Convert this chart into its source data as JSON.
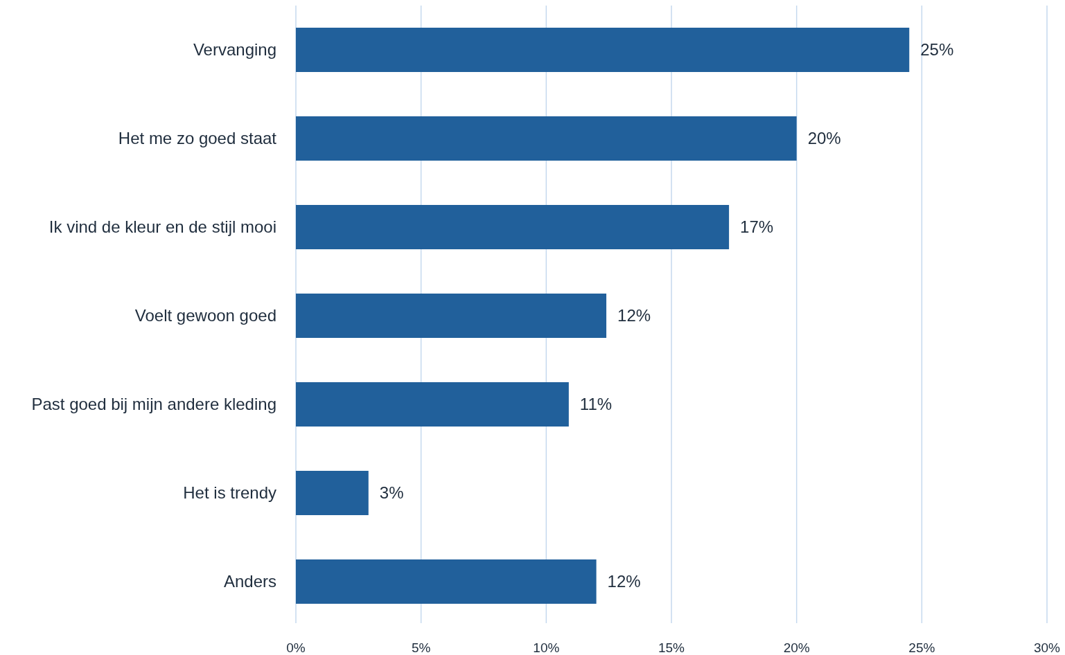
{
  "chart_data": {
    "type": "bar",
    "orientation": "horizontal",
    "categories": [
      "Vervanging",
      "Het me zo goed staat",
      "Ik vind de kleur en de stijl mooi",
      "Voelt gewoon goed",
      "Past goed bij mijn andere kleding",
      "Het is trendy",
      "Anders"
    ],
    "values": [
      24.5,
      20.0,
      17.3,
      12.4,
      10.9,
      2.9,
      12.0
    ],
    "value_labels": [
      "25%",
      "20%",
      "17%",
      "12%",
      "11%",
      "3%",
      "12%"
    ],
    "color": "#21609b",
    "xlim": [
      0,
      30
    ],
    "xticks": [
      {
        "value": 0,
        "label": "0%"
      },
      {
        "value": 5,
        "label": "5%"
      },
      {
        "value": 10,
        "label": "10%"
      },
      {
        "value": 15,
        "label": "15%"
      },
      {
        "value": 20,
        "label": "20%"
      },
      {
        "value": 25,
        "label": "25%"
      },
      {
        "value": 30,
        "label": "30%"
      }
    ],
    "grid": "x"
  }
}
